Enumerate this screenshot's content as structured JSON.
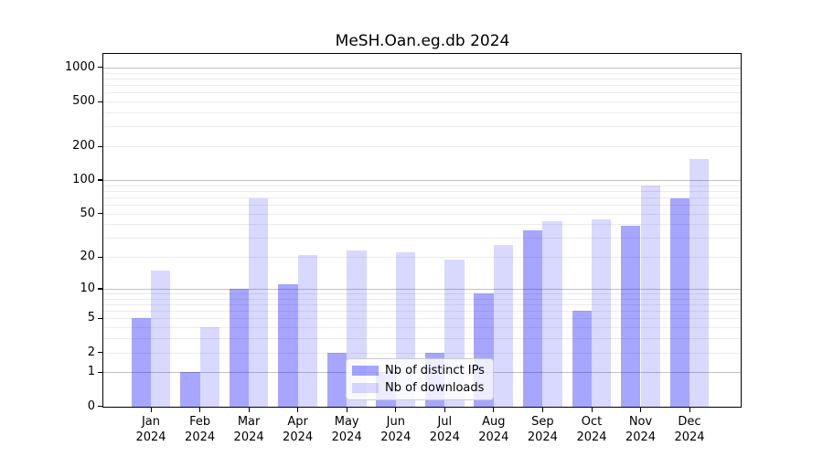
{
  "chart_data": {
    "type": "bar",
    "title": "MeSH.Oan.eg.db 2024",
    "categories": [
      "Jan",
      "Feb",
      "Mar",
      "Apr",
      "May",
      "Jun",
      "Jul",
      "Aug",
      "Sep",
      "Oct",
      "Nov",
      "Dec"
    ],
    "year": "2024",
    "series": [
      {
        "name": "Nb of distinct IPs",
        "key": "distinct-ips",
        "color": "rgba(0,0,255,0.35)",
        "color_hex": "#a6a6ff",
        "values": [
          5,
          1,
          10,
          11,
          2,
          1,
          2,
          9,
          35,
          6,
          39,
          68
        ]
      },
      {
        "name": "Nb of downloads",
        "key": "downloads",
        "color": "rgba(0,0,255,0.15)",
        "color_hex": "#d9d9ff",
        "values": [
          15,
          4,
          68,
          21,
          23,
          22,
          19,
          26,
          43,
          44,
          90,
          155
        ]
      }
    ],
    "yscale": "log1p",
    "yticks": [
      0,
      1,
      2,
      5,
      10,
      20,
      50,
      100,
      200,
      500,
      1000
    ],
    "ylim": [
      0,
      1300
    ],
    "grid": "on",
    "legend_position": "lower-center",
    "axis_color": "#000000",
    "major_grid_color": "#c3c3c3",
    "minor_grid_color": "#ebebeb"
  }
}
